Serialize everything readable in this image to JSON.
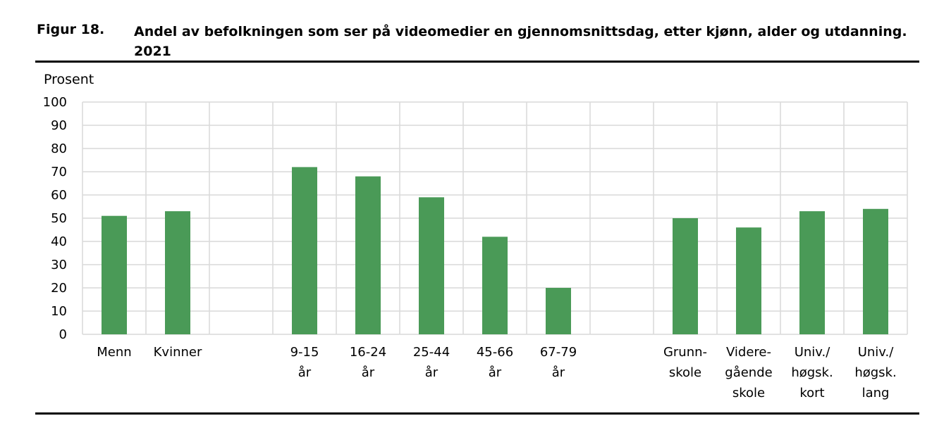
{
  "figure": {
    "number": "Figur 18.",
    "title": "Andel av befolkningen som ser på videomedier en gjennomsnittsdag, etter kjønn, alder og utdanning. 2021"
  },
  "chart_data": {
    "type": "bar",
    "ylabel": "Prosent",
    "ylim": [
      0,
      100
    ],
    "yticks": [
      0,
      10,
      20,
      30,
      40,
      50,
      60,
      70,
      80,
      90,
      100
    ],
    "grid": true,
    "bar_color": "#4a9a57",
    "grid_color": "#d9d9d9",
    "categories": [
      {
        "label": [
          "Menn"
        ],
        "value": 51
      },
      {
        "label": [
          "Kvinner"
        ],
        "value": 53
      },
      {
        "label": [
          ""
        ],
        "value": null
      },
      {
        "label": [
          "9-15",
          "år"
        ],
        "value": 72
      },
      {
        "label": [
          "16-24",
          "år"
        ],
        "value": 68
      },
      {
        "label": [
          "25-44",
          "år"
        ],
        "value": 59
      },
      {
        "label": [
          "45-66",
          "år"
        ],
        "value": 42
      },
      {
        "label": [
          "67-79",
          "år"
        ],
        "value": 20
      },
      {
        "label": [
          ""
        ],
        "value": null
      },
      {
        "label": [
          "Grunn-",
          "skole"
        ],
        "value": 50
      },
      {
        "label": [
          "Videre-",
          "gående",
          "skole"
        ],
        "value": 46
      },
      {
        "label": [
          "Univ./",
          "høgsk.",
          "kort"
        ],
        "value": 53
      },
      {
        "label": [
          "Univ./",
          "høgsk.",
          "lang"
        ],
        "value": 54
      }
    ]
  }
}
